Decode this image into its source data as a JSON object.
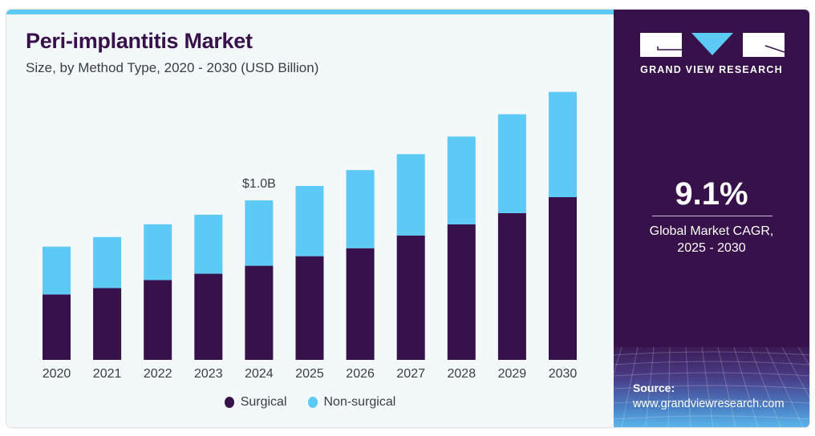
{
  "header": {
    "title": "Peri-implantitis Market",
    "subtitle": "Size, by Method Type, 2020 - 2030 (USD Billion)"
  },
  "sidebar": {
    "brand": "GRAND VIEW RESEARCH",
    "cagr_value": "9.1%",
    "cagr_label_line1": "Global Market CAGR,",
    "cagr_label_line2": "2025 - 2030",
    "source_title": "Source:",
    "source_url": "www.grandviewresearch.com"
  },
  "colors": {
    "surgical": "#37114a",
    "non_surgical": "#5ccaf5",
    "accent_bar": "#5ccaf5",
    "panel": "#37114a"
  },
  "chart_data": {
    "type": "bar",
    "stacked": true,
    "title": "Peri-implantitis Market",
    "subtitle": "Size, by Method Type, 2020 - 2030 (USD Billion)",
    "xlabel": "",
    "ylabel": "",
    "categories": [
      "2020",
      "2021",
      "2022",
      "2023",
      "2024",
      "2025",
      "2026",
      "2027",
      "2028",
      "2029",
      "2030"
    ],
    "series": [
      {
        "name": "Surgical",
        "color": "#37114a",
        "values": [
          0.41,
          0.45,
          0.5,
          0.54,
          0.59,
          0.65,
          0.7,
          0.78,
          0.85,
          0.92,
          1.02
        ]
      },
      {
        "name": "Non-surgical",
        "color": "#5ccaf5",
        "values": [
          0.3,
          0.32,
          0.35,
          0.37,
          0.41,
          0.44,
          0.49,
          0.51,
          0.55,
          0.62,
          0.66
        ]
      }
    ],
    "annotations": [
      {
        "category": "2024",
        "text": "$1.0B"
      }
    ],
    "ylim": [
      0,
      1.7
    ],
    "grid": false,
    "legend": {
      "position": "bottom-center",
      "entries": [
        "Surgical",
        "Non-surgical"
      ]
    }
  }
}
